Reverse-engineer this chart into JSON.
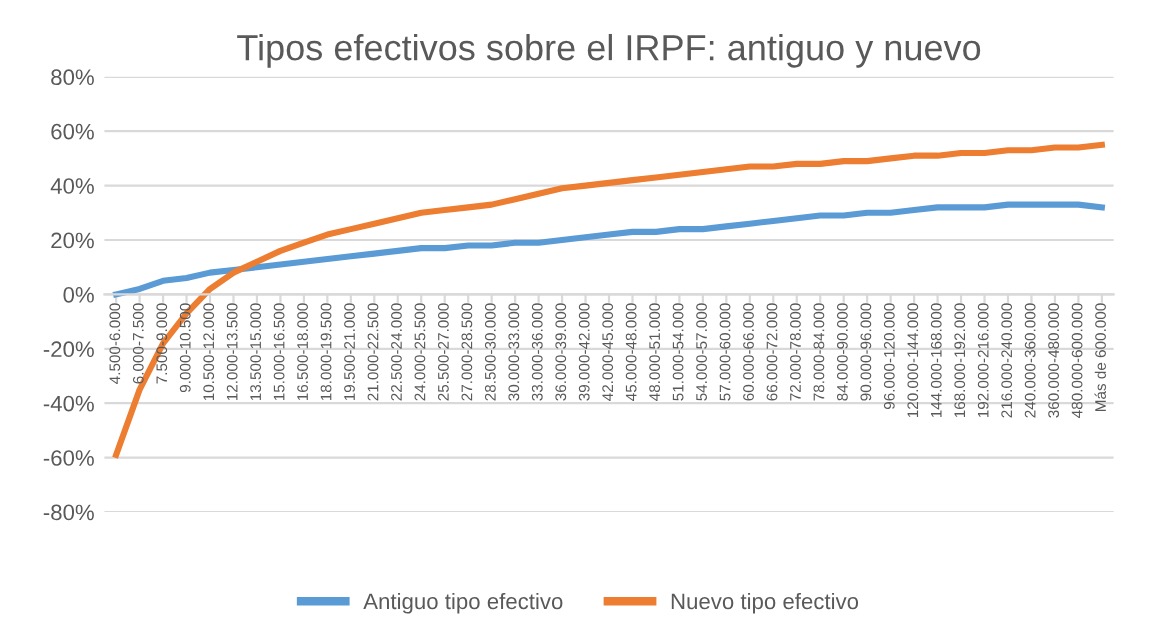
{
  "chart_data": {
    "type": "line",
    "title": "Tipos efectivos sobre el IRPF: antiguo y nuevo",
    "categories": [
      "4.500-6.000",
      "6.000-7.500",
      "7.500-9.000",
      "9.000-10.500",
      "10.500-12.000",
      "12.000-13.500",
      "13.500-15.000",
      "15.000-16.500",
      "16.500-18.000",
      "18.000-19.500",
      "19.500-21.000",
      "21.000-22.500",
      "22.500-24.000",
      "24.000-25.500",
      "25.500-27.000",
      "27.000-28.500",
      "28.500-30.000",
      "30.000-33.000",
      "33.000-36.000",
      "36.000-39.000",
      "39.000-42.000",
      "42.000-45.000",
      "45.000-48.000",
      "48.000-51.000",
      "51.000-54.000",
      "54.000-57.000",
      "57.000-60.000",
      "60.000-66.000",
      "66.000-72.000",
      "72.000-78.000",
      "78.000-84.000",
      "84.000-90.000",
      "90.000-96.000",
      "96.000-120.000",
      "120.000-144.000",
      "144.000-168.000",
      "168.000-192.000",
      "192.000-216.000",
      "216.000-240.000",
      "240.000-360.000",
      "360.000-480.000",
      "480.000-600.000",
      "Más de 600.000"
    ],
    "series": [
      {
        "name": "Antiguo tipo efectivo",
        "color": "#5b9bd5",
        "values": [
          0,
          2,
          5,
          6,
          8,
          9,
          10,
          11,
          12,
          13,
          14,
          15,
          16,
          17,
          17,
          18,
          18,
          19,
          19,
          20,
          21,
          22,
          23,
          23,
          24,
          24,
          25,
          26,
          27,
          28,
          29,
          29,
          30,
          30,
          31,
          32,
          32,
          32,
          33,
          33,
          33,
          33,
          32
        ]
      },
      {
        "name": "Nuevo tipo efectivo",
        "color": "#ed7d31",
        "values": [
          -59,
          -35,
          -18,
          -7,
          2,
          8,
          12,
          16,
          19,
          22,
          24,
          26,
          28,
          30,
          31,
          32,
          33,
          35,
          37,
          39,
          40,
          41,
          42,
          43,
          44,
          45,
          46,
          47,
          47,
          48,
          48,
          49,
          49,
          50,
          51,
          51,
          52,
          52,
          53,
          53,
          54,
          54,
          55
        ]
      }
    ],
    "ylim": [
      -80,
      80
    ],
    "yticks": [
      {
        "value": -80,
        "label": "-80%"
      },
      {
        "value": -60,
        "label": "-60%"
      },
      {
        "value": -40,
        "label": "-40%"
      },
      {
        "value": -20,
        "label": "-20%"
      },
      {
        "value": 0,
        "label": "0%"
      },
      {
        "value": 20,
        "label": "20%"
      },
      {
        "value": 40,
        "label": "40%"
      },
      {
        "value": 60,
        "label": "60%"
      },
      {
        "value": 80,
        "label": "80%"
      }
    ],
    "grid": "y",
    "legend": "bottom",
    "marker": "none",
    "line_style": "solid"
  }
}
